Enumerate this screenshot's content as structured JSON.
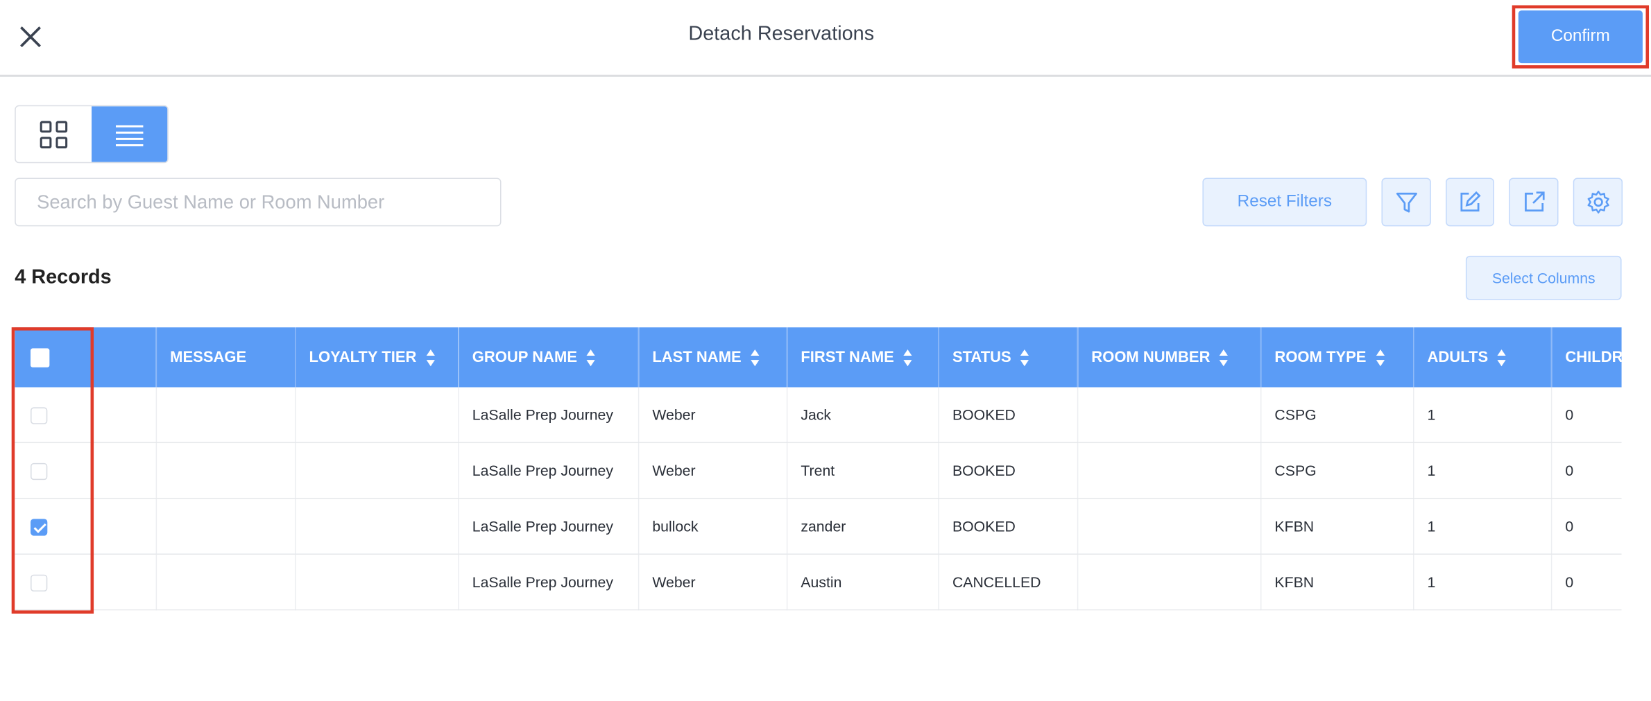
{
  "header": {
    "title": "Detach Reservations",
    "confirm_label": "Confirm",
    "close_icon": "close-icon"
  },
  "toolbar": {
    "view_modes": [
      {
        "name": "grid-view",
        "active": false
      },
      {
        "name": "list-view",
        "active": true
      }
    ],
    "search_placeholder": "Search by Guest Name or Room Number",
    "search_value": "",
    "reset_filters_label": "Reset Filters",
    "icons": [
      "filter-icon",
      "edit-icon",
      "export-icon",
      "settings-icon"
    ]
  },
  "records_label": "4 Records",
  "select_columns_label": "Select Columns",
  "table": {
    "columns": [
      {
        "label": "MESSAGE",
        "sortable": false
      },
      {
        "label": "LOYALTY TIER",
        "sortable": true
      },
      {
        "label": "GROUP NAME",
        "sortable": true
      },
      {
        "label": "LAST NAME",
        "sortable": true
      },
      {
        "label": "FIRST NAME",
        "sortable": true
      },
      {
        "label": "STATUS",
        "sortable": true
      },
      {
        "label": "ROOM NUMBER",
        "sortable": true
      },
      {
        "label": "ROOM TYPE",
        "sortable": true
      },
      {
        "label": "ADULTS",
        "sortable": true
      },
      {
        "label": "CHILDR",
        "sortable": false
      }
    ],
    "rows": [
      {
        "checked": false,
        "cells": [
          "",
          "",
          "LaSalle Prep Journey",
          "Weber",
          "Jack",
          "BOOKED",
          "",
          "CSPG",
          "1",
          "0"
        ]
      },
      {
        "checked": false,
        "cells": [
          "",
          "",
          "LaSalle Prep Journey",
          "Weber",
          "Trent",
          "BOOKED",
          "",
          "CSPG",
          "1",
          "0"
        ]
      },
      {
        "checked": true,
        "cells": [
          "",
          "",
          "LaSalle Prep Journey",
          "bullock",
          "zander",
          "BOOKED",
          "",
          "KFBN",
          "1",
          "0"
        ]
      },
      {
        "checked": false,
        "cells": [
          "",
          "",
          "LaSalle Prep Journey",
          "Weber",
          "Austin",
          "CANCELLED",
          "",
          "KFBN",
          "1",
          "0"
        ]
      }
    ]
  },
  "colors": {
    "accent": "#5b9cf6",
    "highlight": "#e03b2a",
    "light_button": "#e9f2fe"
  }
}
